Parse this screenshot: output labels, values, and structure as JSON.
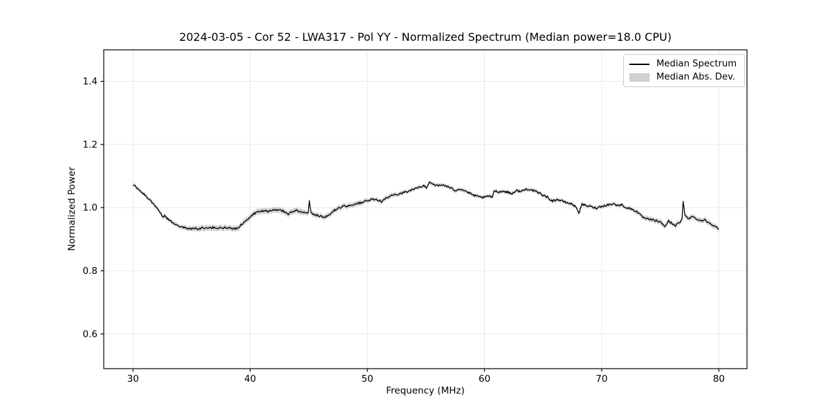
{
  "chart_data": {
    "type": "line",
    "title": "2024-03-05 - Cor 52 - LWA317 - Pol YY - Normalized Spectrum (Median power=18.0 CPU)",
    "xlabel": "Frequency (MHz)",
    "ylabel": "Normalized Power",
    "xlim": [
      27.5,
      82.4
    ],
    "ylim": [
      0.49,
      1.5
    ],
    "xticks": [
      30,
      40,
      50,
      60,
      70,
      80
    ],
    "yticks": [
      0.6,
      0.8,
      1.0,
      1.2,
      1.4
    ],
    "grid": true,
    "grid_color": "#e8e8e8",
    "spine_color": "#000000",
    "band_color": "#cdcdcd",
    "noise_amp": 0.0033,
    "legend": {
      "position": "upper right",
      "entries": [
        {
          "label": "Median Spectrum",
          "type": "line",
          "color": "#000000"
        },
        {
          "label": "Median Abs. Dev.",
          "type": "patch",
          "color": "#d3d3d3"
        }
      ]
    },
    "series": [
      {
        "name": "Median Spectrum",
        "color": "#000000",
        "points_format": [
          "freq_mhz",
          "normalized_power",
          "median_abs_dev"
        ],
        "points": [
          [
            30.0,
            1.072,
            0.006
          ],
          [
            30.2,
            1.067,
            0.006
          ],
          [
            30.4,
            1.06,
            0.006
          ],
          [
            30.7,
            1.05,
            0.006
          ],
          [
            31.0,
            1.04,
            0.006
          ],
          [
            31.3,
            1.03,
            0.006
          ],
          [
            31.6,
            1.018,
            0.006
          ],
          [
            32.0,
            0.999,
            0.006
          ],
          [
            32.3,
            0.988,
            0.006
          ],
          [
            32.4,
            0.98,
            0.007
          ],
          [
            32.55,
            0.97,
            0.007
          ],
          [
            32.7,
            0.975,
            0.007
          ],
          [
            32.9,
            0.966,
            0.007
          ],
          [
            33.3,
            0.955,
            0.007
          ],
          [
            33.6,
            0.949,
            0.007
          ],
          [
            34.0,
            0.941,
            0.007
          ],
          [
            34.4,
            0.936,
            0.007
          ],
          [
            34.8,
            0.933,
            0.008
          ],
          [
            35.2,
            0.934,
            0.008
          ],
          [
            35.6,
            0.932,
            0.009
          ],
          [
            36.0,
            0.936,
            0.009
          ],
          [
            36.4,
            0.934,
            0.009
          ],
          [
            36.8,
            0.937,
            0.009
          ],
          [
            37.2,
            0.935,
            0.009
          ],
          [
            37.6,
            0.936,
            0.009
          ],
          [
            38.0,
            0.937,
            0.009
          ],
          [
            38.4,
            0.935,
            0.009
          ],
          [
            38.7,
            0.932,
            0.009
          ],
          [
            39.0,
            0.938,
            0.009
          ],
          [
            39.4,
            0.952,
            0.009
          ],
          [
            39.7,
            0.962,
            0.009
          ],
          [
            40.0,
            0.972,
            0.009
          ],
          [
            40.4,
            0.982,
            0.009
          ],
          [
            40.8,
            0.988,
            0.009
          ],
          [
            41.2,
            0.991,
            0.009
          ],
          [
            41.6,
            0.988,
            0.009
          ],
          [
            42.0,
            0.991,
            0.009
          ],
          [
            42.4,
            0.994,
            0.009
          ],
          [
            42.8,
            0.99,
            0.009
          ],
          [
            43.2,
            0.979,
            0.009
          ],
          [
            43.6,
            0.988,
            0.009
          ],
          [
            44.0,
            0.991,
            0.009
          ],
          [
            44.4,
            0.987,
            0.009
          ],
          [
            44.8,
            0.984,
            0.008
          ],
          [
            44.95,
            0.986,
            0.008
          ],
          [
            45.05,
            1.02,
            0.008
          ],
          [
            45.2,
            0.982,
            0.008
          ],
          [
            45.6,
            0.978,
            0.008
          ],
          [
            46.0,
            0.973,
            0.008
          ],
          [
            46.4,
            0.971,
            0.008
          ],
          [
            46.8,
            0.978,
            0.008
          ],
          [
            47.2,
            0.992,
            0.008
          ],
          [
            47.6,
            1.0,
            0.008
          ],
          [
            48.0,
            1.004,
            0.008
          ],
          [
            48.5,
            1.007,
            0.008
          ],
          [
            49.0,
            1.012,
            0.008
          ],
          [
            49.5,
            1.016,
            0.008
          ],
          [
            50.0,
            1.022,
            0.007
          ],
          [
            50.5,
            1.026,
            0.007
          ],
          [
            51.0,
            1.024,
            0.007
          ],
          [
            51.2,
            1.019,
            0.007
          ],
          [
            51.6,
            1.03,
            0.007
          ],
          [
            52.0,
            1.037,
            0.007
          ],
          [
            52.5,
            1.042,
            0.007
          ],
          [
            53.0,
            1.047,
            0.007
          ],
          [
            53.5,
            1.052,
            0.006
          ],
          [
            54.0,
            1.059,
            0.006
          ],
          [
            54.5,
            1.065,
            0.006
          ],
          [
            54.8,
            1.07,
            0.006
          ],
          [
            55.05,
            1.062,
            0.006
          ],
          [
            55.3,
            1.083,
            0.006
          ],
          [
            55.6,
            1.075,
            0.006
          ],
          [
            56.0,
            1.069,
            0.006
          ],
          [
            56.5,
            1.072,
            0.006
          ],
          [
            57.0,
            1.064,
            0.006
          ],
          [
            57.5,
            1.054,
            0.006
          ],
          [
            57.8,
            1.06,
            0.006
          ],
          [
            58.2,
            1.056,
            0.006
          ],
          [
            58.6,
            1.048,
            0.006
          ],
          [
            59.0,
            1.04,
            0.006
          ],
          [
            59.5,
            1.034,
            0.006
          ],
          [
            60.0,
            1.032,
            0.006
          ],
          [
            60.4,
            1.038,
            0.006
          ],
          [
            60.65,
            1.03,
            0.006
          ],
          [
            60.8,
            1.054,
            0.006
          ],
          [
            61.2,
            1.05,
            0.006
          ],
          [
            61.6,
            1.052,
            0.006
          ],
          [
            62.0,
            1.049,
            0.006
          ],
          [
            62.3,
            1.044,
            0.006
          ],
          [
            62.7,
            1.054,
            0.006
          ],
          [
            63.1,
            1.051,
            0.006
          ],
          [
            63.5,
            1.058,
            0.006
          ],
          [
            63.8,
            1.059,
            0.006
          ],
          [
            64.2,
            1.053,
            0.006
          ],
          [
            64.6,
            1.047,
            0.006
          ],
          [
            65.0,
            1.04,
            0.006
          ],
          [
            65.4,
            1.032,
            0.006
          ],
          [
            65.8,
            1.021,
            0.006
          ],
          [
            66.2,
            1.026,
            0.006
          ],
          [
            66.6,
            1.021,
            0.006
          ],
          [
            67.0,
            1.016,
            0.006
          ],
          [
            67.5,
            1.011,
            0.006
          ],
          [
            67.9,
            0.998,
            0.006
          ],
          [
            68.05,
            0.982,
            0.006
          ],
          [
            68.3,
            1.01,
            0.006
          ],
          [
            68.7,
            1.006,
            0.006
          ],
          [
            69.1,
            1.003,
            0.006
          ],
          [
            69.5,
            0.999,
            0.006
          ],
          [
            70.0,
            1.004,
            0.006
          ],
          [
            70.5,
            1.009,
            0.006
          ],
          [
            71.0,
            1.012,
            0.006
          ],
          [
            71.3,
            1.007,
            0.006
          ],
          [
            71.7,
            1.009,
            0.006
          ],
          [
            72.1,
            1.0,
            0.006
          ],
          [
            72.5,
            0.996,
            0.007
          ],
          [
            73.0,
            0.988,
            0.007
          ],
          [
            73.4,
            0.972,
            0.007
          ],
          [
            73.8,
            0.964,
            0.008
          ],
          [
            74.2,
            0.962,
            0.008
          ],
          [
            74.6,
            0.959,
            0.008
          ],
          [
            75.0,
            0.954,
            0.008
          ],
          [
            75.4,
            0.941,
            0.008
          ],
          [
            75.7,
            0.957,
            0.008
          ],
          [
            76.0,
            0.95,
            0.008
          ],
          [
            76.3,
            0.944,
            0.008
          ],
          [
            76.6,
            0.951,
            0.008
          ],
          [
            76.85,
            0.96,
            0.008
          ],
          [
            76.95,
            1.022,
            0.008
          ],
          [
            77.1,
            0.974,
            0.008
          ],
          [
            77.4,
            0.967,
            0.008
          ],
          [
            77.7,
            0.971,
            0.008
          ],
          [
            78.0,
            0.967,
            0.008
          ],
          [
            78.4,
            0.959,
            0.008
          ],
          [
            78.8,
            0.961,
            0.008
          ],
          [
            79.2,
            0.951,
            0.008
          ],
          [
            79.6,
            0.944,
            0.008
          ],
          [
            80.0,
            0.931,
            0.008
          ]
        ]
      }
    ]
  }
}
